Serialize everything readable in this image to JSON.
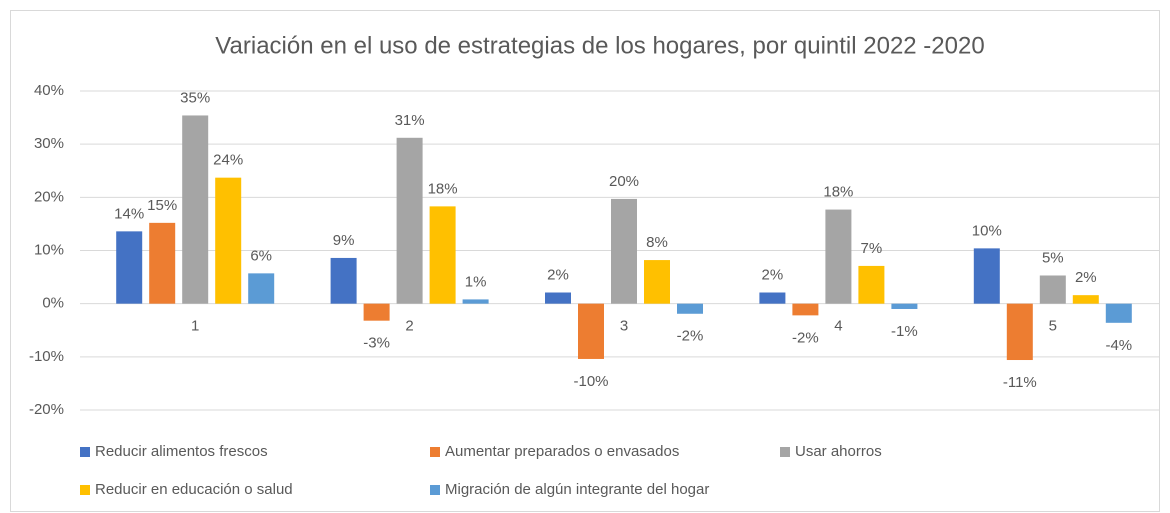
{
  "chart_data": {
    "type": "bar",
    "title": "Variación en el uso de estrategias de los hogares, por quintil 2022 -2020",
    "categories": [
      "1",
      "2",
      "3",
      "4",
      "5"
    ],
    "series": [
      {
        "name": "Reducir alimentos frescos",
        "color": "#4472c4",
        "values": [
          13.6,
          8.6,
          2.1,
          2.1,
          10.4
        ],
        "value_labels": [
          "14%",
          "9%",
          "2%",
          "2%",
          "10%"
        ]
      },
      {
        "name": "Aumentar preparados o envasados",
        "color": "#ed7d31",
        "values": [
          15.2,
          -3.2,
          -10.4,
          -2.2,
          -10.6
        ],
        "value_labels": [
          "15%",
          "-3%",
          "-10%",
          "-2%",
          "-11%"
        ]
      },
      {
        "name": "Usar ahorros",
        "color": "#a5a5a5",
        "values": [
          35.4,
          31.2,
          19.7,
          17.7,
          5.3
        ],
        "value_labels": [
          "35%",
          "31%",
          "20%",
          "18%",
          "5%"
        ]
      },
      {
        "name": "Reducir en educación o salud",
        "color": "#ffc000",
        "values": [
          23.7,
          18.3,
          8.2,
          7.1,
          1.6
        ],
        "value_labels": [
          "24%",
          "18%",
          "8%",
          "7%",
          "2%"
        ]
      },
      {
        "name": "Migración de algún integrante del hogar",
        "color": "#5b9bd5",
        "values": [
          5.7,
          0.8,
          -1.9,
          -1.0,
          -3.6
        ],
        "value_labels": [
          "6%",
          "1%",
          "-2%",
          "-1%",
          "-4%"
        ]
      }
    ],
    "ylim": [
      -20,
      40
    ],
    "yticks": [
      {
        "value": -20,
        "label": "-20%"
      },
      {
        "value": -10,
        "label": "-10%"
      },
      {
        "value": 0,
        "label": "0%"
      },
      {
        "value": 10,
        "label": "10%"
      },
      {
        "value": 20,
        "label": "20%"
      },
      {
        "value": 30,
        "label": "30%"
      },
      {
        "value": 40,
        "label": "40%"
      }
    ],
    "grid": true,
    "legend": "bottom"
  }
}
